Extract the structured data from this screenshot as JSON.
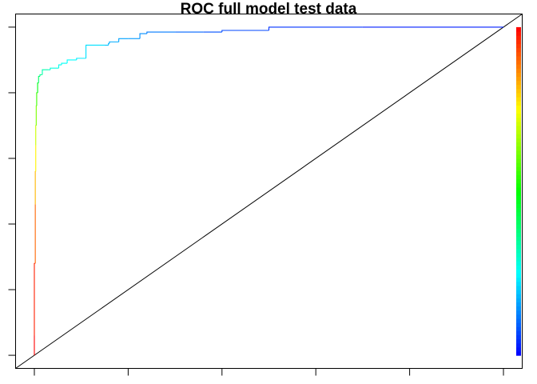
{
  "chart_data": {
    "type": "line",
    "title": "ROC full model test data",
    "xlabel": "",
    "ylabel": "",
    "xlim": [
      -0.04,
      1.04
    ],
    "ylim": [
      -0.04,
      1.04
    ],
    "x_ticks": [
      0,
      0.2,
      0.4,
      0.6,
      0.8,
      1.0
    ],
    "y_ticks": [
      0,
      0.2,
      0.4,
      0.6,
      0.8,
      1.0
    ],
    "tick_labels_shown": false,
    "grid": false,
    "legend": "none",
    "series": [
      {
        "colored_by": "cutoff",
        "x": [
          0.0,
          0.0,
          0.002,
          0.002,
          0.003,
          0.003,
          0.004,
          0.005,
          0.007,
          0.009,
          0.012,
          0.017,
          0.03,
          0.034,
          0.036,
          0.052,
          0.058,
          0.07,
          0.09,
          0.11,
          0.15,
          0.158,
          0.16,
          0.18,
          0.2,
          0.225,
          0.24,
          0.3,
          0.36,
          0.4,
          0.5,
          0.7,
          1.0
        ],
        "y": [
          0.0,
          0.06,
          0.28,
          0.46,
          0.56,
          0.64,
          0.7,
          0.76,
          0.8,
          0.83,
          0.85,
          0.855,
          0.87,
          0.87,
          0.875,
          0.875,
          0.885,
          0.89,
          0.9,
          0.905,
          0.945,
          0.945,
          0.95,
          0.955,
          0.965,
          0.965,
          0.98,
          0.985,
          0.985,
          0.985,
          0.99,
          1.0,
          1.0
        ],
        "cutoff": [
          1.0,
          0.97,
          0.9,
          0.82,
          0.76,
          0.7,
          0.62,
          0.56,
          0.48,
          0.4,
          0.36,
          0.33,
          0.3,
          0.29,
          0.28,
          0.27,
          0.26,
          0.25,
          0.23,
          0.22,
          0.19,
          0.18,
          0.17,
          0.16,
          0.15,
          0.14,
          0.12,
          0.1,
          0.08,
          0.07,
          0.05,
          0.03,
          0.01
        ]
      },
      {
        "kind": "reference-diagonal",
        "x": [
          -0.04,
          1.04
        ],
        "y": [
          -0.04,
          1.04
        ]
      }
    ],
    "colorbar": {
      "range": [
        0,
        1
      ],
      "colors": [
        "#0000ff",
        "#00ffff",
        "#00ff00",
        "#ffff00",
        "#ff0000"
      ],
      "position": "right"
    }
  }
}
